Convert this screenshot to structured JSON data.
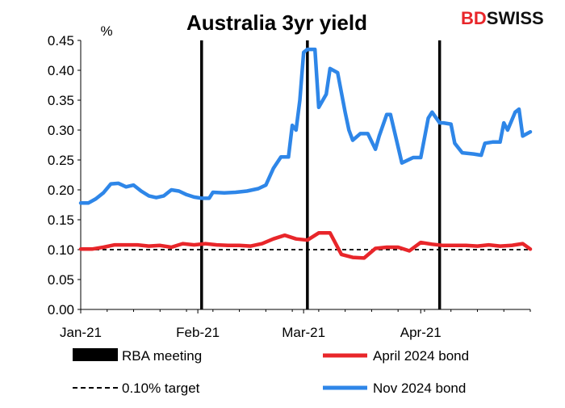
{
  "brand": {
    "part1": "BD",
    "part2": "SWISS",
    "color": "#e8262a"
  },
  "chart_data": {
    "type": "line",
    "title": "Australia 3yr yield",
    "ylabel": "%",
    "ylim": [
      0.0,
      0.45
    ],
    "yticks": [
      "0.00",
      "0.05",
      "0.10",
      "0.15",
      "0.20",
      "0.25",
      "0.30",
      "0.35",
      "0.40",
      "0.45"
    ],
    "xlim": [
      "2021-01-01",
      "2021-04-30"
    ],
    "xticks": [
      {
        "date": "2021-01-01",
        "label": "Jan-21"
      },
      {
        "date": "2021-02-01",
        "label": "Feb-21"
      },
      {
        "date": "2021-03-01",
        "label": "Mar-21"
      },
      {
        "date": "2021-04-01",
        "label": "Apr-21"
      }
    ],
    "grid": false,
    "legend_position": "bottom",
    "rba_meetings": {
      "name": "RBA meeting",
      "color": "#000000",
      "dates": [
        "2021-02-02",
        "2021-03-02",
        "2021-04-06"
      ]
    },
    "target": {
      "name": "0.10% target",
      "value": 0.1,
      "color": "#000000"
    },
    "series": [
      {
        "name": "April 2024 bond",
        "color": "#e8262a",
        "points": [
          [
            "2021-01-01",
            0.101
          ],
          [
            "2021-01-04",
            0.101
          ],
          [
            "2021-01-07",
            0.104
          ],
          [
            "2021-01-10",
            0.108
          ],
          [
            "2021-01-13",
            0.108
          ],
          [
            "2021-01-16",
            0.108
          ],
          [
            "2021-01-19",
            0.106
          ],
          [
            "2021-01-22",
            0.107
          ],
          [
            "2021-01-25",
            0.104
          ],
          [
            "2021-01-28",
            0.11
          ],
          [
            "2021-01-31",
            0.108
          ],
          [
            "2021-02-03",
            0.11
          ],
          [
            "2021-02-06",
            0.108
          ],
          [
            "2021-02-09",
            0.107
          ],
          [
            "2021-02-12",
            0.107
          ],
          [
            "2021-02-15",
            0.106
          ],
          [
            "2021-02-18",
            0.11
          ],
          [
            "2021-02-21",
            0.118
          ],
          [
            "2021-02-24",
            0.124
          ],
          [
            "2021-02-27",
            0.118
          ],
          [
            "2021-03-02",
            0.116
          ],
          [
            "2021-03-05",
            0.128
          ],
          [
            "2021-03-08",
            0.128
          ],
          [
            "2021-03-11",
            0.092
          ],
          [
            "2021-03-14",
            0.087
          ],
          [
            "2021-03-17",
            0.086
          ],
          [
            "2021-03-20",
            0.102
          ],
          [
            "2021-03-23",
            0.104
          ],
          [
            "2021-03-26",
            0.104
          ],
          [
            "2021-03-29",
            0.098
          ],
          [
            "2021-04-01",
            0.112
          ],
          [
            "2021-04-04",
            0.109
          ],
          [
            "2021-04-07",
            0.107
          ],
          [
            "2021-04-10",
            0.107
          ],
          [
            "2021-04-13",
            0.107
          ],
          [
            "2021-04-16",
            0.106
          ],
          [
            "2021-04-19",
            0.108
          ],
          [
            "2021-04-22",
            0.106
          ],
          [
            "2021-04-25",
            0.107
          ],
          [
            "2021-04-28",
            0.11
          ],
          [
            "2021-04-30",
            0.101
          ]
        ]
      },
      {
        "name": "Nov 2024 bond",
        "color": "#2e86e8",
        "points": [
          [
            "2021-01-01",
            0.178
          ],
          [
            "2021-01-03",
            0.178
          ],
          [
            "2021-01-05",
            0.185
          ],
          [
            "2021-01-07",
            0.195
          ],
          [
            "2021-01-09",
            0.21
          ],
          [
            "2021-01-11",
            0.211
          ],
          [
            "2021-01-13",
            0.205
          ],
          [
            "2021-01-15",
            0.208
          ],
          [
            "2021-01-17",
            0.198
          ],
          [
            "2021-01-19",
            0.19
          ],
          [
            "2021-01-21",
            0.187
          ],
          [
            "2021-01-23",
            0.19
          ],
          [
            "2021-01-25",
            0.2
          ],
          [
            "2021-01-27",
            0.198
          ],
          [
            "2021-01-29",
            0.192
          ],
          [
            "2021-01-31",
            0.188
          ],
          [
            "2021-02-02",
            0.186
          ],
          [
            "2021-02-04",
            0.186
          ],
          [
            "2021-02-05",
            0.196
          ],
          [
            "2021-02-08",
            0.195
          ],
          [
            "2021-02-11",
            0.196
          ],
          [
            "2021-02-14",
            0.198
          ],
          [
            "2021-02-17",
            0.202
          ],
          [
            "2021-02-19",
            0.208
          ],
          [
            "2021-02-21",
            0.236
          ],
          [
            "2021-02-23",
            0.255
          ],
          [
            "2021-02-25",
            0.255
          ],
          [
            "2021-02-26",
            0.308
          ],
          [
            "2021-02-27",
            0.3
          ],
          [
            "2021-02-28",
            0.35
          ],
          [
            "2021-03-01",
            0.43
          ],
          [
            "2021-03-02",
            0.435
          ],
          [
            "2021-03-04",
            0.435
          ],
          [
            "2021-03-05",
            0.338
          ],
          [
            "2021-03-07",
            0.36
          ],
          [
            "2021-03-08",
            0.403
          ],
          [
            "2021-03-10",
            0.396
          ],
          [
            "2021-03-12",
            0.33
          ],
          [
            "2021-03-13",
            0.3
          ],
          [
            "2021-03-14",
            0.283
          ],
          [
            "2021-03-16",
            0.294
          ],
          [
            "2021-03-18",
            0.294
          ],
          [
            "2021-03-20",
            0.268
          ],
          [
            "2021-03-21",
            0.29
          ],
          [
            "2021-03-23",
            0.326
          ],
          [
            "2021-03-24",
            0.326
          ],
          [
            "2021-03-27",
            0.245
          ],
          [
            "2021-03-30",
            0.254
          ],
          [
            "2021-04-01",
            0.254
          ],
          [
            "2021-04-03",
            0.32
          ],
          [
            "2021-04-04",
            0.33
          ],
          [
            "2021-04-06",
            0.312
          ],
          [
            "2021-04-07",
            0.312
          ],
          [
            "2021-04-09",
            0.31
          ],
          [
            "2021-04-10",
            0.278
          ],
          [
            "2021-04-12",
            0.262
          ],
          [
            "2021-04-15",
            0.26
          ],
          [
            "2021-04-17",
            0.258
          ],
          [
            "2021-04-18",
            0.278
          ],
          [
            "2021-04-20",
            0.28
          ],
          [
            "2021-04-22",
            0.28
          ],
          [
            "2021-04-23",
            0.312
          ],
          [
            "2021-04-24",
            0.3
          ],
          [
            "2021-04-26",
            0.33
          ],
          [
            "2021-04-27",
            0.335
          ],
          [
            "2021-04-28",
            0.29
          ],
          [
            "2021-04-30",
            0.297
          ]
        ]
      }
    ]
  }
}
